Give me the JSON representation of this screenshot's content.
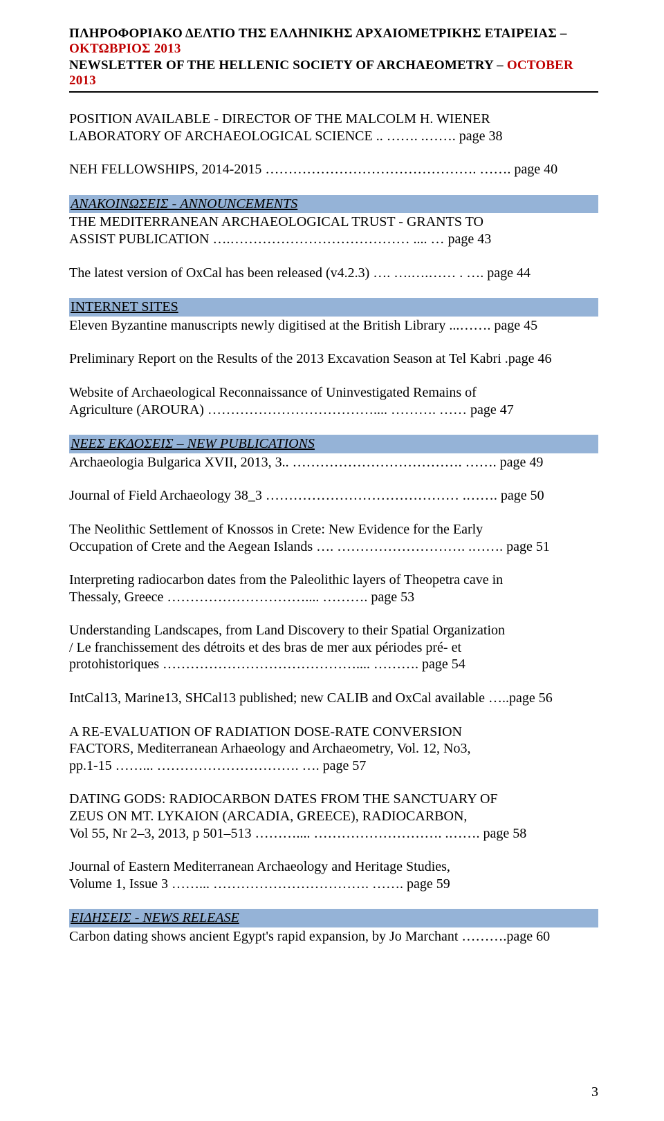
{
  "header": {
    "line1_a": "ΠΛΗΡΟΦΟΡΙΑΚΟ ΔΕΛΤΙΟ ΤΗΣ ΕΛΛΗΝΙΚΗΣ ΑΡΧΑΙΟΜΕΤΡΙΚΗΣ ΕΤΑΙΡΕΙΑΣ – ",
    "line1_b": "ΟΚΤΩΒΡΙΟΣ 2013",
    "line2_a": "NEWSLETTER OF THE HELLENIC SOCIETY OF ARCHAEOMETRY – ",
    "line2_b": "OCTOBER 2013"
  },
  "entries": {
    "e1_l1": "POSITION AVAILABLE - DIRECTOR OF THE MALCOLM H. WIENER",
    "e1_l2": "LABORATORY OF ARCHAEOLOGICAL SCIENCE .. ……. .……. page 38",
    "e2": "NEH FELLOWSHIPS, 2014-2015 ………………………………………. ……. page 40",
    "sec1": "ΑΝΑΚΟΙΝΩΣΕΙΣ - ANNOUNCEMENTS",
    "e3_l1": "THE MEDITERRANEAN ARCHAEOLOGICAL TRUST - GRANTS TO",
    "e3_l2": "ASSIST PUBLICATION ….………………………………… .... … page 43",
    "e4": "The latest version of OxCal has been released (v4.2.3) …. ….….…… . …. page 44",
    "sec2": "INTERNET SITES",
    "e5": "Eleven Byzantine manuscripts newly digitised at the British Library ...……. page 45",
    "e6": "Preliminary Report on the Results of the 2013 Excavation Season at Tel Kabri .page 46",
    "e7_l1": "Website of Archaeological Reconnaissance of Uninvestigated Remains of",
    "e7_l2": "Agriculture (AROURA) ……………………………….... ………. …… page 47",
    "sec3": "ΝΕΕΣ ΕΚΔΟΣΕΙΣ – NEW PUBLICATIONS",
    "e8": "Archaeologia Bulgarica XVII, 2013, 3.. ………………………………. ……. page 49",
    "e9": "Journal of Field Archaeology 38_3 …………………………………… .……. page 50",
    "e10_l1": "The Neolithic Settlement of Knossos in Crete: New Evidence for the Early",
    "e10_l2": "Occupation of Crete and the Aegean Islands …. ………………………. .……. page 51",
    "e11_l1": "Interpreting radiocarbon dates from the Paleolithic layers of Theopetra cave in",
    "e11_l2": "Thessaly, Greece ………………………….... ………. page 53",
    "e12_l1": "Understanding Landscapes, from Land Discovery to their Spatial Organization",
    "e12_l2": "/ Le franchissement des détroits et des bras de mer aux périodes pré- et",
    "e12_l3": "protohistoriques …………………………………….... ………. page 54",
    "e13": "IntCal13, Marine13, SHCal13 published; new CALIB and OxCal available …..page 56",
    "e14_l1": "A RE-EVALUATION OF RADIATION DOSE-RATE CONVERSION",
    "e14_l2": "FACTORS, Mediterranean Arhaeology and Archaeometry, Vol. 12, No3,",
    "e14_l3": "pp.1-15 ……... …………………………. …. page 57",
    "e15_l1": "DATING GODS: RADIOCARBON DATES FROM THE SANCTUARY OF",
    "e15_l2": "ZEUS ON MT. LYKAION (ARCADIA, GREECE), RADIOCARBON,",
    "e15_l3": "Vol 55, Nr 2–3, 2013, p 501–513 ……….... ………………………. .……. page 58",
    "e16_l1": "Journal of Eastern Mediterranean Archaeology and Heritage Studies,",
    "e16_l2": "Volume 1, Issue 3 ……... ……………………………. ……. page 59",
    "sec4": "ΕΙΔΗΣΕΙΣ - NEWS RELEASE",
    "e17": "Carbon dating shows ancient Egypt's rapid expansion, by Jo Marchant ……….page 60"
  },
  "page_number": "3",
  "colors": {
    "section_bg": "#95b3d7",
    "accent_red": "#c00000",
    "text": "#000000",
    "background": "#ffffff"
  }
}
